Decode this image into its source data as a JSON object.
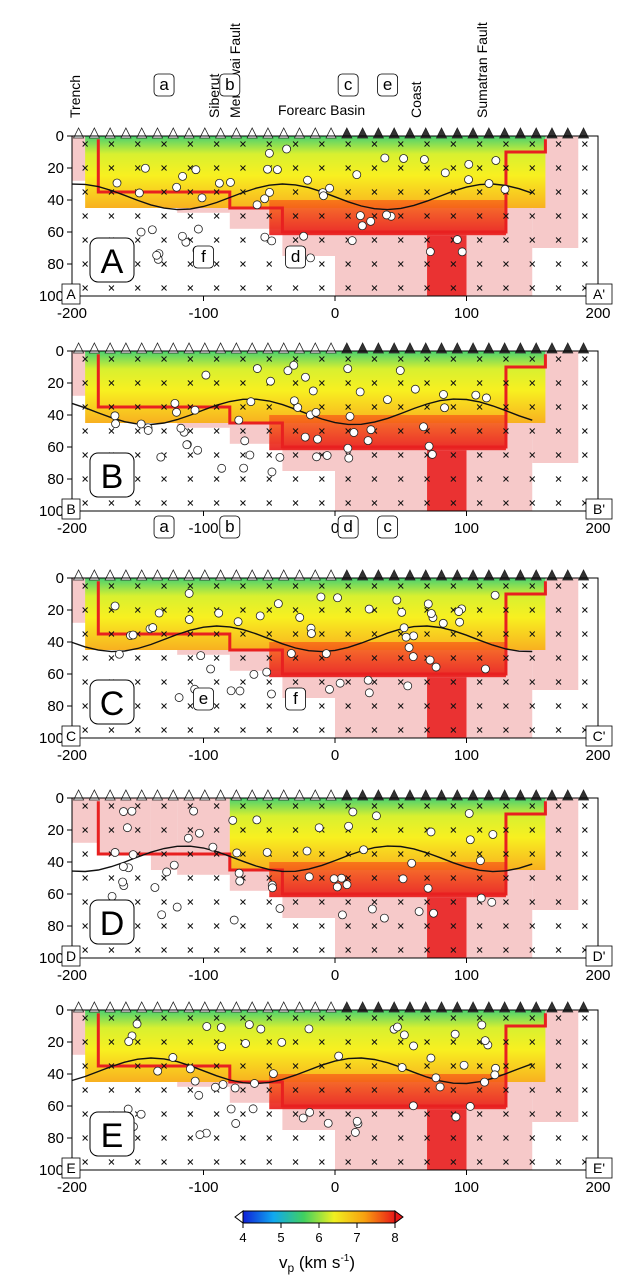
{
  "header": {
    "labels": [
      "Trench",
      "Siberut",
      "Mentawai Fault",
      "Forearc Basin",
      "Coast",
      "Sumatran Fault"
    ],
    "arrows": [
      "a",
      "b",
      "c",
      "e"
    ]
  },
  "axes": {
    "x_ticks": [
      "-200",
      "-100",
      "0",
      "100",
      "200"
    ],
    "y_ticks": [
      "0",
      "20",
      "40",
      "60",
      "80",
      "100"
    ]
  },
  "panels": [
    {
      "label": "A",
      "left": "A",
      "right": "A'",
      "callouts": [
        "a",
        "b",
        "c",
        "e",
        "f",
        "d"
      ]
    },
    {
      "label": "B",
      "left": "B",
      "right": "B'",
      "callouts": []
    },
    {
      "label": "C",
      "left": "C",
      "right": "C'",
      "callouts": [
        "a",
        "b",
        "d",
        "c",
        "e",
        "f"
      ]
    },
    {
      "label": "D",
      "left": "D",
      "right": "D'",
      "callouts": []
    },
    {
      "label": "E",
      "left": "E",
      "right": "E'",
      "callouts": []
    }
  ],
  "colorbar": {
    "ticks": [
      "4",
      "5",
      "6",
      "7",
      "8"
    ],
    "label_main": "v",
    "label_sub": "p",
    "label_rest": " (km s",
    "label_sup": "-1",
    "label_end": ")",
    "colors": [
      "#1020d8",
      "#10a8f0",
      "#40d060",
      "#f0f020",
      "#f8a010",
      "#e81818"
    ]
  }
}
